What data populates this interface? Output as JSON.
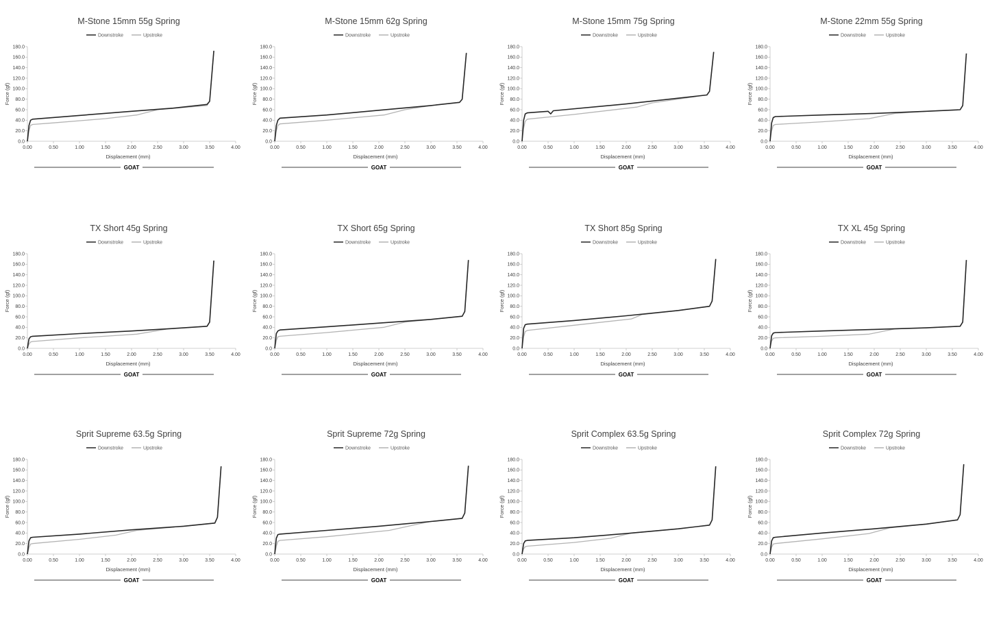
{
  "chart_data": [
    {
      "type": "line",
      "title": "M-Stone 15mm 55g Spring",
      "xlabel": "Displacement (mm)",
      "ylabel": "Force (gf)",
      "xlim": [
        0,
        4
      ],
      "ylim": [
        0,
        180
      ],
      "xticks": [
        "0.00",
        "0.50",
        "1.00",
        "1.50",
        "2.00",
        "2.50",
        "3.00",
        "3.50",
        "4.00"
      ],
      "yticks": [
        "0.0",
        "20.0",
        "40.0",
        "60.0",
        "80.0",
        "100.0",
        "120.0",
        "140.0",
        "160.0",
        "180.0"
      ],
      "legend": "top-center",
      "grid": false,
      "footer": "GOAT",
      "series": [
        {
          "name": "Downstroke",
          "x": [
            0,
            0.03,
            0.06,
            0.1,
            2.0,
            2.8,
            3.45,
            3.5,
            3.58
          ],
          "y": [
            0,
            30,
            40,
            42,
            57,
            63,
            70,
            76,
            172
          ]
        },
        {
          "name": "Upstroke",
          "x": [
            0,
            0.03,
            0.06,
            0.1,
            0.5,
            1.5,
            2.1,
            2.5,
            3.45,
            3.5,
            3.58
          ],
          "y": [
            0,
            20,
            30,
            32,
            35,
            43,
            50,
            60,
            68,
            76,
            172
          ]
        }
      ]
    },
    {
      "type": "line",
      "title": "M-Stone 15mm 62g Spring",
      "xlabel": "Displacement (mm)",
      "ylabel": "Force (gf)",
      "xlim": [
        0,
        4
      ],
      "ylim": [
        0,
        180
      ],
      "xticks": [
        "0.00",
        "0.50",
        "1.00",
        "1.50",
        "2.00",
        "2.50",
        "3.00",
        "3.50",
        "4.00"
      ],
      "yticks": [
        "0.0",
        "20.0",
        "40.0",
        "60.0",
        "80.0",
        "100.0",
        "120.0",
        "140.0",
        "160.0",
        "180.0"
      ],
      "legend": "top-center",
      "grid": false,
      "footer": "GOAT",
      "series": [
        {
          "name": "Downstroke",
          "x": [
            0,
            0.03,
            0.06,
            0.1,
            1.0,
            2.0,
            3.0,
            3.55,
            3.6,
            3.68
          ],
          "y": [
            0,
            30,
            40,
            44,
            50,
            59,
            68,
            74,
            80,
            168
          ]
        },
        {
          "name": "Upstroke",
          "x": [
            0,
            0.03,
            0.06,
            0.1,
            1.0,
            2.1,
            2.5,
            3.0,
            3.55,
            3.6,
            3.68
          ],
          "y": [
            0,
            20,
            30,
            33,
            40,
            50,
            60,
            68,
            74,
            80,
            168
          ]
        }
      ]
    },
    {
      "type": "line",
      "title": "M-Stone 15mm 75g Spring",
      "xlabel": "Displacement (mm)",
      "ylabel": "Force (gf)",
      "xlim": [
        0,
        4
      ],
      "ylim": [
        0,
        180
      ],
      "xticks": [
        "0.00",
        "0.50",
        "1.00",
        "1.50",
        "2.00",
        "2.50",
        "3.00",
        "3.50",
        "4.00"
      ],
      "yticks": [
        "0.0",
        "20.0",
        "40.0",
        "60.0",
        "80.0",
        "100.0",
        "120.0",
        "140.0",
        "160.0",
        "180.0"
      ],
      "legend": "top-center",
      "grid": false,
      "footer": "GOAT",
      "series": [
        {
          "name": "Downstroke",
          "x": [
            0,
            0.03,
            0.06,
            0.1,
            0.5,
            0.55,
            0.6,
            2.0,
            3.55,
            3.6,
            3.68
          ],
          "y": [
            0,
            40,
            52,
            54,
            57,
            52,
            58,
            71,
            88,
            95,
            170
          ]
        },
        {
          "name": "Upstroke",
          "x": [
            0,
            0.03,
            0.06,
            0.1,
            1.0,
            2.2,
            2.5,
            3.55,
            3.6,
            3.68
          ],
          "y": [
            0,
            25,
            38,
            42,
            51,
            65,
            73,
            88,
            95,
            170
          ]
        }
      ]
    },
    {
      "type": "line",
      "title": "M-Stone 22mm 55g Spring",
      "xlabel": "Displacement (mm)",
      "ylabel": "Force (gf)",
      "xlim": [
        0,
        4
      ],
      "ylim": [
        0,
        180
      ],
      "xticks": [
        "0.00",
        "0.50",
        "1.00",
        "1.50",
        "2.00",
        "2.50",
        "3.00",
        "3.50",
        "4.00"
      ],
      "yticks": [
        "0.0",
        "20.0",
        "40.0",
        "60.0",
        "80.0",
        "100.0",
        "120.0",
        "140.0",
        "160.0",
        "180.0"
      ],
      "legend": "top-center",
      "grid": false,
      "footer": "GOAT",
      "series": [
        {
          "name": "Downstroke",
          "x": [
            0,
            0.03,
            0.06,
            0.1,
            1.0,
            2.0,
            3.0,
            3.65,
            3.7,
            3.77
          ],
          "y": [
            0,
            35,
            45,
            47,
            50,
            53,
            57,
            60,
            68,
            167
          ]
        },
        {
          "name": "Upstroke",
          "x": [
            0,
            0.03,
            0.06,
            0.1,
            1.0,
            1.9,
            2.4,
            3.0,
            3.65,
            3.7,
            3.77
          ],
          "y": [
            0,
            20,
            30,
            32,
            37,
            43,
            53,
            57,
            60,
            68,
            167
          ]
        }
      ]
    },
    {
      "type": "line",
      "title": "TX Short 45g Spring",
      "xlabel": "Displacement (mm)",
      "ylabel": "Force (gf)",
      "xlim": [
        0,
        4
      ],
      "ylim": [
        0,
        180
      ],
      "xticks": [
        "0.00",
        "0.50",
        "1.00",
        "1.50",
        "2.00",
        "2.50",
        "3.00",
        "3.50",
        "4.00"
      ],
      "yticks": [
        "0.0",
        "20.0",
        "40.0",
        "60.0",
        "80.0",
        "100.0",
        "120.0",
        "140.0",
        "160.0",
        "180.0"
      ],
      "legend": "top-center",
      "grid": false,
      "footer": "GOAT",
      "series": [
        {
          "name": "Downstroke",
          "x": [
            0,
            0.03,
            0.06,
            0.1,
            1.0,
            2.0,
            3.0,
            3.45,
            3.5,
            3.58
          ],
          "y": [
            0,
            18,
            22,
            23,
            28,
            33,
            39,
            42,
            50,
            167
          ]
        },
        {
          "name": "Upstroke",
          "x": [
            0,
            0.03,
            0.06,
            0.1,
            1.0,
            2.1,
            2.7,
            3.0,
            3.45,
            3.5,
            3.58
          ],
          "y": [
            0,
            8,
            12,
            13,
            20,
            27,
            37,
            39,
            42,
            50,
            167
          ]
        }
      ]
    },
    {
      "type": "line",
      "title": "TX Short 65g Spring",
      "xlabel": "Displacement (mm)",
      "ylabel": "Force (gf)",
      "xlim": [
        0,
        4
      ],
      "ylim": [
        0,
        180
      ],
      "xticks": [
        "0.00",
        "0.50",
        "1.00",
        "1.50",
        "2.00",
        "2.50",
        "3.00",
        "3.50",
        "4.00"
      ],
      "yticks": [
        "0.0",
        "20.0",
        "40.0",
        "60.0",
        "80.0",
        "100.0",
        "120.0",
        "140.0",
        "160.0",
        "180.0"
      ],
      "legend": "top-center",
      "grid": false,
      "footer": "GOAT",
      "series": [
        {
          "name": "Downstroke",
          "x": [
            0,
            0.03,
            0.06,
            0.1,
            1.0,
            2.0,
            3.0,
            3.6,
            3.65,
            3.72
          ],
          "y": [
            0,
            28,
            33,
            35,
            41,
            48,
            55,
            61,
            70,
            168
          ]
        },
        {
          "name": "Upstroke",
          "x": [
            0,
            0.03,
            0.06,
            0.1,
            1.0,
            2.1,
            2.5,
            3.0,
            3.6,
            3.65,
            3.72
          ],
          "y": [
            0,
            15,
            22,
            23,
            30,
            40,
            50,
            55,
            61,
            70,
            168
          ]
        }
      ]
    },
    {
      "type": "line",
      "title": "TX Short 85g Spring",
      "xlabel": "Displacement (mm)",
      "ylabel": "Force (gf)",
      "xlim": [
        0,
        4
      ],
      "ylim": [
        0,
        180
      ],
      "xticks": [
        "0.00",
        "0.50",
        "1.00",
        "1.50",
        "2.00",
        "2.50",
        "3.00",
        "3.50",
        "4.00"
      ],
      "yticks": [
        "0.0",
        "20.0",
        "40.0",
        "60.0",
        "80.0",
        "100.0",
        "120.0",
        "140.0",
        "160.0",
        "180.0"
      ],
      "legend": "top-center",
      "grid": false,
      "footer": "GOAT",
      "series": [
        {
          "name": "Downstroke",
          "x": [
            0,
            0.03,
            0.06,
            0.1,
            1.0,
            2.0,
            3.0,
            3.6,
            3.65,
            3.72
          ],
          "y": [
            0,
            38,
            45,
            46,
            53,
            62,
            72,
            80,
            90,
            170
          ]
        },
        {
          "name": "Upstroke",
          "x": [
            0,
            0.03,
            0.06,
            0.1,
            1.0,
            2.1,
            2.3,
            3.0,
            3.6,
            3.65,
            3.72
          ],
          "y": [
            0,
            22,
            32,
            34,
            44,
            56,
            64,
            72,
            80,
            90,
            170
          ]
        }
      ]
    },
    {
      "type": "line",
      "title": "TX XL 45g Spring",
      "xlabel": "Displacement (mm)",
      "ylabel": "Force (gf)",
      "xlim": [
        0,
        4
      ],
      "ylim": [
        0,
        180
      ],
      "xticks": [
        "0.00",
        "0.50",
        "1.00",
        "1.50",
        "2.00",
        "2.50",
        "3.00",
        "3.50",
        "4.00"
      ],
      "yticks": [
        "0.0",
        "20.0",
        "40.0",
        "60.0",
        "80.0",
        "100.0",
        "120.0",
        "140.0",
        "160.0",
        "180.0"
      ],
      "legend": "top-center",
      "grid": false,
      "footer": "GOAT",
      "series": [
        {
          "name": "Downstroke",
          "x": [
            0,
            0.03,
            0.06,
            0.1,
            1.0,
            2.0,
            3.0,
            3.65,
            3.7,
            3.77
          ],
          "y": [
            0,
            24,
            29,
            30,
            33,
            36,
            39,
            42,
            50,
            168
          ]
        },
        {
          "name": "Upstroke",
          "x": [
            0,
            0.03,
            0.06,
            0.1,
            1.0,
            1.9,
            2.4,
            3.0,
            3.65,
            3.7,
            3.77
          ],
          "y": [
            0,
            14,
            19,
            20,
            23,
            27,
            37,
            39,
            42,
            50,
            168
          ]
        }
      ]
    },
    {
      "type": "line",
      "title": "Sprit Supreme 63.5g Spring",
      "xlabel": "Displacement (mm)",
      "ylabel": "Force (gf)",
      "xlim": [
        0,
        4
      ],
      "ylim": [
        0,
        180
      ],
      "xticks": [
        "0.00",
        "0.50",
        "1.00",
        "1.50",
        "2.00",
        "2.50",
        "3.00",
        "3.50",
        "4.00"
      ],
      "yticks": [
        "0.0",
        "20.0",
        "40.0",
        "60.0",
        "80.0",
        "100.0",
        "120.0",
        "140.0",
        "160.0",
        "180.0"
      ],
      "legend": "top-center",
      "grid": false,
      "footer": "GOAT",
      "series": [
        {
          "name": "Downstroke",
          "x": [
            0,
            0.03,
            0.06,
            0.1,
            1.0,
            2.0,
            3.0,
            3.6,
            3.65,
            3.72
          ],
          "y": [
            0,
            25,
            31,
            32,
            38,
            46,
            53,
            59,
            70,
            167
          ]
        },
        {
          "name": "Upstroke",
          "x": [
            0,
            0.03,
            0.06,
            0.1,
            1.0,
            1.7,
            2.1,
            3.0,
            3.6,
            3.65,
            3.72
          ],
          "y": [
            0,
            12,
            19,
            20,
            28,
            36,
            45,
            53,
            59,
            70,
            167
          ]
        }
      ]
    },
    {
      "type": "line",
      "title": "Sprit Supreme 72g Spring",
      "xlabel": "Displacement (mm)",
      "ylabel": "Force (gf)",
      "xlim": [
        0,
        4
      ],
      "ylim": [
        0,
        180
      ],
      "xticks": [
        "0.00",
        "0.50",
        "1.00",
        "1.50",
        "2.00",
        "2.50",
        "3.00",
        "3.50",
        "4.00"
      ],
      "yticks": [
        "0.0",
        "20.0",
        "40.0",
        "60.0",
        "80.0",
        "100.0",
        "120.0",
        "140.0",
        "160.0",
        "180.0"
      ],
      "legend": "top-center",
      "grid": false,
      "footer": "GOAT",
      "series": [
        {
          "name": "Downstroke",
          "x": [
            0,
            0.03,
            0.06,
            0.1,
            1.0,
            2.0,
            3.0,
            3.6,
            3.65,
            3.72
          ],
          "y": [
            0,
            30,
            37,
            38,
            45,
            53,
            62,
            68,
            78,
            168
          ]
        },
        {
          "name": "Upstroke",
          "x": [
            0,
            0.03,
            0.06,
            0.1,
            1.0,
            2.2,
            2.8,
            3.0,
            3.6,
            3.65,
            3.72
          ],
          "y": [
            0,
            15,
            24,
            26,
            33,
            45,
            58,
            62,
            68,
            78,
            168
          ]
        }
      ]
    },
    {
      "type": "line",
      "title": "Sprit Complex 63.5g Spring",
      "xlabel": "Displacement (mm)",
      "ylabel": "Force (gf)",
      "xlim": [
        0,
        4
      ],
      "ylim": [
        0,
        180
      ],
      "xticks": [
        "0.00",
        "0.50",
        "1.00",
        "1.50",
        "2.00",
        "2.50",
        "3.00",
        "3.50",
        "4.00"
      ],
      "yticks": [
        "0.0",
        "20.0",
        "40.0",
        "60.0",
        "80.0",
        "100.0",
        "120.0",
        "140.0",
        "160.0",
        "180.0"
      ],
      "legend": "top-center",
      "grid": false,
      "footer": "GOAT",
      "series": [
        {
          "name": "Downstroke",
          "x": [
            0,
            0.03,
            0.06,
            0.1,
            1.0,
            2.0,
            3.0,
            3.6,
            3.65,
            3.72
          ],
          "y": [
            0,
            20,
            25,
            26,
            31,
            39,
            48,
            55,
            65,
            167
          ]
        },
        {
          "name": "Upstroke",
          "x": [
            0,
            0.03,
            0.06,
            0.1,
            1.0,
            1.7,
            2.1,
            3.0,
            3.6,
            3.65,
            3.72
          ],
          "y": [
            0,
            10,
            14,
            15,
            22,
            30,
            40,
            48,
            55,
            65,
            167
          ]
        }
      ]
    },
    {
      "type": "line",
      "title": "Sprit Complex 72g Spring",
      "xlabel": "Displacement (mm)",
      "ylabel": "Force (gf)",
      "xlim": [
        0,
        4
      ],
      "ylim": [
        0,
        180
      ],
      "xticks": [
        "0.00",
        "0.50",
        "1.00",
        "1.50",
        "2.00",
        "2.50",
        "3.00",
        "3.50",
        "4.00"
      ],
      "yticks": [
        "0.0",
        "20.0",
        "40.0",
        "60.0",
        "80.0",
        "100.0",
        "120.0",
        "140.0",
        "160.0",
        "180.0"
      ],
      "legend": "top-center",
      "grid": false,
      "footer": "GOAT",
      "series": [
        {
          "name": "Downstroke",
          "x": [
            0,
            0.03,
            0.06,
            0.1,
            1.0,
            2.0,
            3.0,
            3.6,
            3.65,
            3.72
          ],
          "y": [
            0,
            25,
            31,
            32,
            40,
            48,
            57,
            65,
            75,
            171
          ]
        },
        {
          "name": "Upstroke",
          "x": [
            0,
            0.03,
            0.06,
            0.1,
            1.0,
            1.9,
            2.3,
            3.0,
            3.6,
            3.65,
            3.72
          ],
          "y": [
            0,
            13,
            19,
            20,
            29,
            39,
            50,
            57,
            65,
            75,
            171
          ]
        }
      ]
    }
  ],
  "colors": {
    "downstroke": "#262626",
    "upstroke": "#b3b3b3",
    "axis": "#bfbfbf",
    "text": "#404040"
  }
}
